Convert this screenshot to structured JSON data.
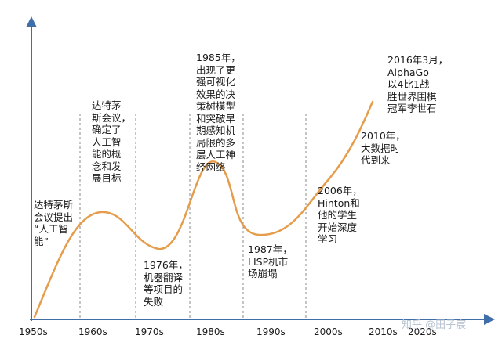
{
  "timeline": {
    "x_ticks": [
      "1950s",
      "1960s",
      "1970s",
      "1980s",
      "1990s",
      "2000s",
      "2010s",
      "2020s"
    ],
    "annotations": [
      {
        "id": "dartmouth-proposal",
        "text": "达特茅斯\n会议提出\n“人工智\n能”"
      },
      {
        "id": "dartmouth-conference",
        "text": "达特茅\n斯会议，\n确定了\n人工智\n能的概\n念和发\n展目标"
      },
      {
        "id": "mt-failure-1976",
        "text": "1976年，\n机器翻译\n等项目的\n失败"
      },
      {
        "id": "neural-net-1985",
        "text": "1985年，\n出现了更\n强可视化\n效果的决\n策树模型\n和突破早\n期感知机\n局限的多\n层人工神\n经网络"
      },
      {
        "id": "lisp-crash-1987",
        "text": "1987年，\nLISP机市\n场崩塌"
      },
      {
        "id": "hinton-2006",
        "text": "2006年，\nHinton和\n他的学生\n开始深度\n学习"
      },
      {
        "id": "big-data-2010",
        "text": "2010年，\n大数据时\n代到来"
      },
      {
        "id": "alphago-2016",
        "text": "2016年3月，\nAlphaGo\n以4比1战\n胜世界围棋\n冠军李世石"
      }
    ]
  },
  "watermark": "知乎 @田子宸",
  "colors": {
    "axis": "#3f6ea8",
    "curve": "#e59d4b",
    "divider": "#8a8a8a",
    "text": "#1a1a1a",
    "watermark": "#b9c4d2"
  }
}
